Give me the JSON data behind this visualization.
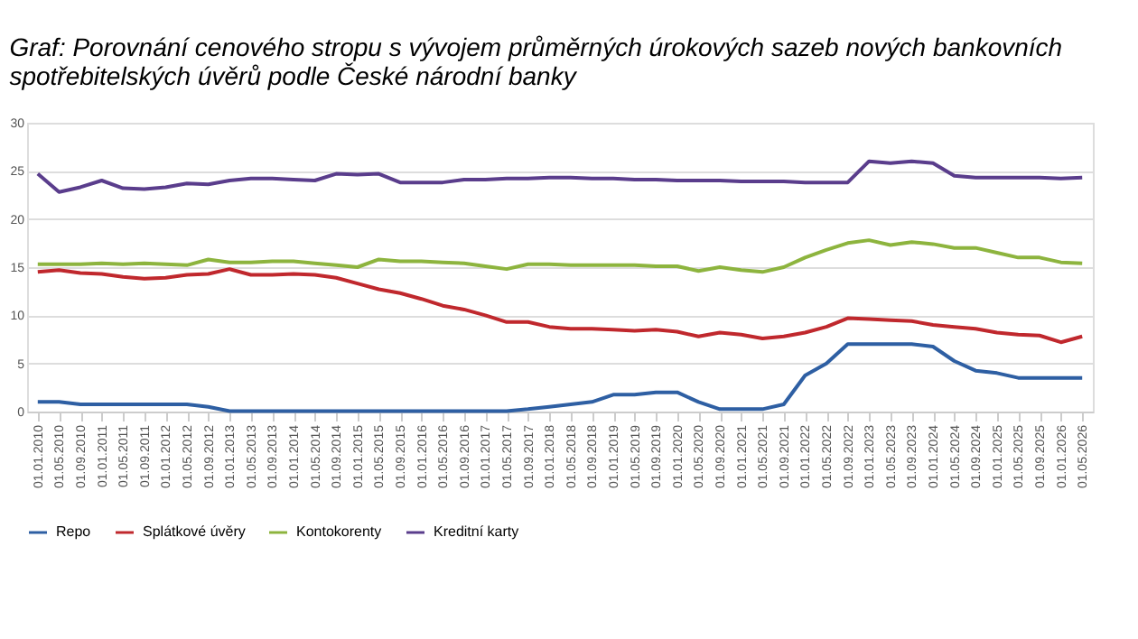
{
  "chart_data": {
    "type": "line",
    "title": "Graf: Porovnání cenového stropu s vývojem průměrných úrokových sazeb nových bankovních spotřebitelských úvěrů podle České národní banky",
    "categories": [
      "01.01.2010",
      "01.05.2010",
      "01.09.2010",
      "01.01.2011",
      "01.05.2011",
      "01.09.2011",
      "01.01.2012",
      "01.05.2012",
      "01.09.2012",
      "01.01.2013",
      "01.05.2013",
      "01.09.2013",
      "01.01.2014",
      "01.05.2014",
      "01.09.2014",
      "01.01.2015",
      "01.05.2015",
      "01.09.2015",
      "01.01.2016",
      "01.05.2016",
      "01.09.2016",
      "01.01.2017",
      "01.05.2017",
      "01.09.2017",
      "01.01.2018",
      "01.05.2018",
      "01.09.2018",
      "01.01.2019",
      "01.05.2019",
      "01.09.2019",
      "01.01.2020",
      "01.05.2020",
      "01.09.2020",
      "01.01.2021",
      "01.05.2021",
      "01.09.2021",
      "01.01.2022",
      "01.05.2022",
      "01.09.2022",
      "01.01.2023",
      "01.05.2023",
      "01.09.2023",
      "01.01.2024",
      "01.05.2024",
      "01.09.2024",
      "01.01.2025",
      "01.05.2025",
      "01.09.2025",
      "01.01.2026",
      "01.05.2026"
    ],
    "series": [
      {
        "name": "Repo",
        "color": "#2e5fa3",
        "values": [
          1.0,
          1.0,
          0.75,
          0.75,
          0.75,
          0.75,
          0.75,
          0.75,
          0.5,
          0.05,
          0.05,
          0.05,
          0.05,
          0.05,
          0.05,
          0.05,
          0.05,
          0.05,
          0.05,
          0.05,
          0.05,
          0.05,
          0.05,
          0.25,
          0.5,
          0.75,
          1.0,
          1.75,
          1.75,
          2.0,
          2.0,
          1.0,
          0.25,
          0.25,
          0.25,
          0.75,
          3.75,
          5.0,
          7.0,
          7.0,
          7.0,
          7.0,
          6.75,
          5.25,
          4.25,
          4.0,
          3.5,
          3.5,
          3.5,
          3.5
        ]
      },
      {
        "name": "Splátkové úvěry",
        "color": "#c0282d",
        "values": [
          14.5,
          14.7,
          14.4,
          14.3,
          14.0,
          13.8,
          13.9,
          14.2,
          14.3,
          14.8,
          14.2,
          14.2,
          14.3,
          14.2,
          13.9,
          13.3,
          12.7,
          12.3,
          11.7,
          11.0,
          10.6,
          10.0,
          9.3,
          9.3,
          8.8,
          8.6,
          8.6,
          8.5,
          8.4,
          8.5,
          8.3,
          7.8,
          8.2,
          8.0,
          7.6,
          7.8,
          8.2,
          8.8,
          9.7,
          9.6,
          9.5,
          9.4,
          9.0,
          8.8,
          8.6,
          8.2,
          8.0,
          7.9,
          7.2,
          7.8
        ]
      },
      {
        "name": "Kontokorenty",
        "color": "#8db43e",
        "values": [
          15.3,
          15.3,
          15.3,
          15.4,
          15.3,
          15.4,
          15.3,
          15.2,
          15.8,
          15.5,
          15.5,
          15.6,
          15.6,
          15.4,
          15.2,
          15.0,
          15.8,
          15.6,
          15.6,
          15.5,
          15.4,
          15.1,
          14.8,
          15.3,
          15.3,
          15.2,
          15.2,
          15.2,
          15.2,
          15.1,
          15.1,
          14.6,
          15.0,
          14.7,
          14.5,
          15.0,
          16.0,
          16.8,
          17.5,
          17.8,
          17.3,
          17.6,
          17.4,
          17.0,
          17.0,
          16.5,
          16.0,
          16.0,
          15.5,
          15.4
        ]
      },
      {
        "name": "Kreditní karty",
        "color": "#5a3d8c",
        "values": [
          24.7,
          22.8,
          23.3,
          24.0,
          23.2,
          23.1,
          23.3,
          23.7,
          23.6,
          24.0,
          24.2,
          24.2,
          24.1,
          24.0,
          24.7,
          24.6,
          24.7,
          23.8,
          23.8,
          23.8,
          24.1,
          24.1,
          24.2,
          24.2,
          24.3,
          24.3,
          24.2,
          24.2,
          24.1,
          24.1,
          24.0,
          24.0,
          24.0,
          23.9,
          23.9,
          23.9,
          23.8,
          23.8,
          23.8,
          26.0,
          25.8,
          26.0,
          25.8,
          24.5,
          24.3,
          24.3,
          24.3,
          24.3,
          24.2,
          24.3
        ]
      }
    ],
    "ylim": [
      0,
      30
    ],
    "yticks": [
      0,
      5,
      10,
      15,
      20,
      25,
      30
    ],
    "grid": "y",
    "legend": "bottom",
    "marker": "none",
    "line_style": "solid"
  }
}
